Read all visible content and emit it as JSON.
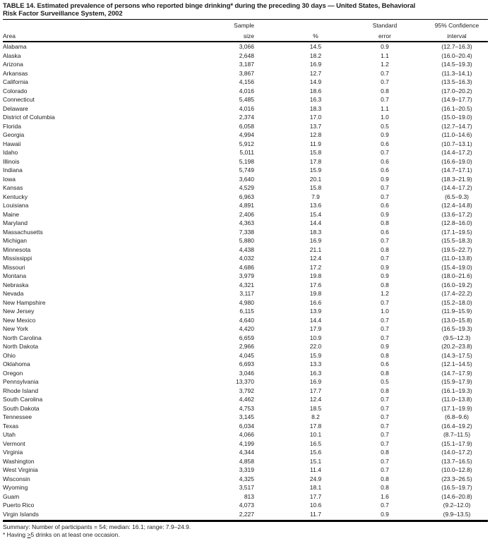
{
  "title_line1": "TABLE 14. Estimated prevalence of persons who reported binge drinking* during the preceding 30 days — United States, Behavioral",
  "title_line2": "Risk Factor Surveillance System, 2002",
  "table": {
    "headers": {
      "area": "Area",
      "sample_line1": "Sample",
      "sample_line2": "size",
      "pct": "%",
      "se_line1": "Standard",
      "se_line2": "error",
      "ci_line1": "95% Confidence",
      "ci_line2": "interval"
    },
    "rows": [
      {
        "area": "Alabama",
        "sample": "3,066",
        "pct": "14.5",
        "se": "0.9",
        "ci": "(12.7–16.3)"
      },
      {
        "area": "Alaska",
        "sample": "2,648",
        "pct": "18.2",
        "se": "1.1",
        "ci": "(16.0–20.4)"
      },
      {
        "area": "Arizona",
        "sample": "3,187",
        "pct": "16.9",
        "se": "1.2",
        "ci": "(14.5–19.3)"
      },
      {
        "area": "Arkansas",
        "sample": "3,867",
        "pct": "12.7",
        "se": "0.7",
        "ci": "(11.3–14.1)"
      },
      {
        "area": "California",
        "sample": "4,156",
        "pct": "14.9",
        "se": "0.7",
        "ci": "(13.5–16.3)"
      },
      {
        "area": "Colorado",
        "sample": "4,016",
        "pct": "18.6",
        "se": "0.8",
        "ci": "(17.0–20.2)"
      },
      {
        "area": "Connecticut",
        "sample": "5,485",
        "pct": "16.3",
        "se": "0.7",
        "ci": "(14.9–17.7)"
      },
      {
        "area": "Delaware",
        "sample": "4,016",
        "pct": "18.3",
        "se": "1.1",
        "ci": "(16.1–20.5)"
      },
      {
        "area": "District of Columbia",
        "sample": "2,374",
        "pct": "17.0",
        "se": "1.0",
        "ci": "(15.0–19.0)"
      },
      {
        "area": "Florida",
        "sample": "6,058",
        "pct": "13.7",
        "se": "0.5",
        "ci": "(12.7–14.7)"
      },
      {
        "area": "Georgia",
        "sample": "4,994",
        "pct": "12.8",
        "se": "0.9",
        "ci": "(11.0–14.6)"
      },
      {
        "area": "Hawaii",
        "sample": "5,912",
        "pct": "11.9",
        "se": "0.6",
        "ci": "(10.7–13.1)"
      },
      {
        "area": "Idaho",
        "sample": "5,011",
        "pct": "15.8",
        "se": "0.7",
        "ci": "(14.4–17.2)"
      },
      {
        "area": "Illinois",
        "sample": "5,198",
        "pct": "17.8",
        "se": "0.6",
        "ci": "(16.6–19.0)"
      },
      {
        "area": "Indiana",
        "sample": "5,749",
        "pct": "15.9",
        "se": "0.6",
        "ci": "(14.7–17.1)"
      },
      {
        "area": "Iowa",
        "sample": "3,640",
        "pct": "20.1",
        "se": "0.9",
        "ci": "(18.3–21.9)"
      },
      {
        "area": "Kansas",
        "sample": "4,529",
        "pct": "15.8",
        "se": "0.7",
        "ci": "(14.4–17.2)"
      },
      {
        "area": "Kentucky",
        "sample": "6,963",
        "pct": "7.9",
        "se": "0.7",
        "ci": "(6.5–9.3)"
      },
      {
        "area": "Louisiana",
        "sample": "4,891",
        "pct": "13.6",
        "se": "0.6",
        "ci": "(12.4–14.8)"
      },
      {
        "area": "Maine",
        "sample": "2,406",
        "pct": "15.4",
        "se": "0.9",
        "ci": "(13.6–17.2)"
      },
      {
        "area": "Maryland",
        "sample": "4,363",
        "pct": "14.4",
        "se": "0.8",
        "ci": "(12.8–16.0)"
      },
      {
        "area": "Massachusetts",
        "sample": "7,338",
        "pct": "18.3",
        "se": "0.6",
        "ci": "(17.1–19.5)"
      },
      {
        "area": "Michigan",
        "sample": "5,880",
        "pct": "16.9",
        "se": "0.7",
        "ci": "(15.5–18.3)"
      },
      {
        "area": "Minnesota",
        "sample": "4,438",
        "pct": "21.1",
        "se": "0.8",
        "ci": "(19.5–22.7)"
      },
      {
        "area": "Mississippi",
        "sample": "4,032",
        "pct": "12.4",
        "se": "0.7",
        "ci": "(11.0–13.8)"
      },
      {
        "area": "Missouri",
        "sample": "4,686",
        "pct": "17.2",
        "se": "0.9",
        "ci": "(15.4–19.0)"
      },
      {
        "area": "Montana",
        "sample": "3,979",
        "pct": "19.8",
        "se": "0.9",
        "ci": "(18.0–21.6)"
      },
      {
        "area": "Nebraska",
        "sample": "4,321",
        "pct": "17.6",
        "se": "0.8",
        "ci": "(16.0–19.2)"
      },
      {
        "area": "Nevada",
        "sample": "3,117",
        "pct": "19.8",
        "se": "1.2",
        "ci": "(17.4–22.2)"
      },
      {
        "area": "New Hampshire",
        "sample": "4,980",
        "pct": "16.6",
        "se": "0.7",
        "ci": "(15.2–18.0)"
      },
      {
        "area": "New Jersey",
        "sample": "6,115",
        "pct": "13.9",
        "se": "1.0",
        "ci": "(11.9–15.9)"
      },
      {
        "area": "New Mexico",
        "sample": "4,640",
        "pct": "14.4",
        "se": "0.7",
        "ci": "(13.0–15.8)"
      },
      {
        "area": "New York",
        "sample": "4,420",
        "pct": "17.9",
        "se": "0.7",
        "ci": "(16.5–19.3)"
      },
      {
        "area": "North Carolina",
        "sample": "6,659",
        "pct": "10.9",
        "se": "0.7",
        "ci": "(9.5–12.3)"
      },
      {
        "area": "North Dakota",
        "sample": "2,966",
        "pct": "22.0",
        "se": "0.9",
        "ci": "(20.2–23.8)"
      },
      {
        "area": "Ohio",
        "sample": "4,045",
        "pct": "15.9",
        "se": "0.8",
        "ci": "(14.3–17.5)"
      },
      {
        "area": "Oklahoma",
        "sample": "6,693",
        "pct": "13.3",
        "se": "0.6",
        "ci": "(12.1–14.5)"
      },
      {
        "area": "Oregon",
        "sample": "3,046",
        "pct": "16.3",
        "se": "0.8",
        "ci": "(14.7–17.9)"
      },
      {
        "area": "Pennsylvania",
        "sample": "13,370",
        "pct": "16.9",
        "se": "0.5",
        "ci": "(15.9–17.9)"
      },
      {
        "area": "Rhode Island",
        "sample": "3,792",
        "pct": "17.7",
        "se": "0.8",
        "ci": "(16.1–19.3)"
      },
      {
        "area": "South Carolina",
        "sample": "4,462",
        "pct": "12.4",
        "se": "0.7",
        "ci": "(11.0–13.8)"
      },
      {
        "area": "South Dakota",
        "sample": "4,753",
        "pct": "18.5",
        "se": "0.7",
        "ci": "(17.1–19.9)"
      },
      {
        "area": "Tennessee",
        "sample": "3,145",
        "pct": "8.2",
        "se": "0.7",
        "ci": "(6.8–9.6)"
      },
      {
        "area": "Texas",
        "sample": "6,034",
        "pct": "17.8",
        "se": "0.7",
        "ci": "(16.4–19.2)"
      },
      {
        "area": "Utah",
        "sample": "4,066",
        "pct": "10.1",
        "se": "0.7",
        "ci": "(8.7–11.5)"
      },
      {
        "area": "Vermont",
        "sample": "4,199",
        "pct": "16.5",
        "se": "0.7",
        "ci": "(15.1–17.9)"
      },
      {
        "area": "Virginia",
        "sample": "4,344",
        "pct": "15.6",
        "se": "0.8",
        "ci": "(14.0–17.2)"
      },
      {
        "area": "Washington",
        "sample": "4,858",
        "pct": "15.1",
        "se": "0.7",
        "ci": "(13.7–16.5)"
      },
      {
        "area": "West Virginia",
        "sample": "3,319",
        "pct": "11.4",
        "se": "0.7",
        "ci": "(10.0–12.8)"
      },
      {
        "area": "Wisconsin",
        "sample": "4,325",
        "pct": "24.9",
        "se": "0.8",
        "ci": "(23.3–26.5)"
      },
      {
        "area": "Wyoming",
        "sample": "3,517",
        "pct": "18.1",
        "se": "0.8",
        "ci": "(16.5–19.7)"
      },
      {
        "area": "Guam",
        "sample": "813",
        "pct": "17.7",
        "se": "1.6",
        "ci": "(14.6–20.8)"
      },
      {
        "area": "Puerto Rico",
        "sample": "4,073",
        "pct": "10.6",
        "se": "0.7",
        "ci": "(9.2–12.0)"
      },
      {
        "area": "Virgin Islands",
        "sample": "2,227",
        "pct": "11.7",
        "se": "0.9",
        "ci": "(9.9–13.5)"
      }
    ]
  },
  "summary": "Summary: Number of participants = 54; median: 16.1; range: 7.9–24.9.",
  "footnote": {
    "prefix": "* Having ",
    "gte": ">",
    "suffix": "5 drinks on at least one occasion."
  }
}
